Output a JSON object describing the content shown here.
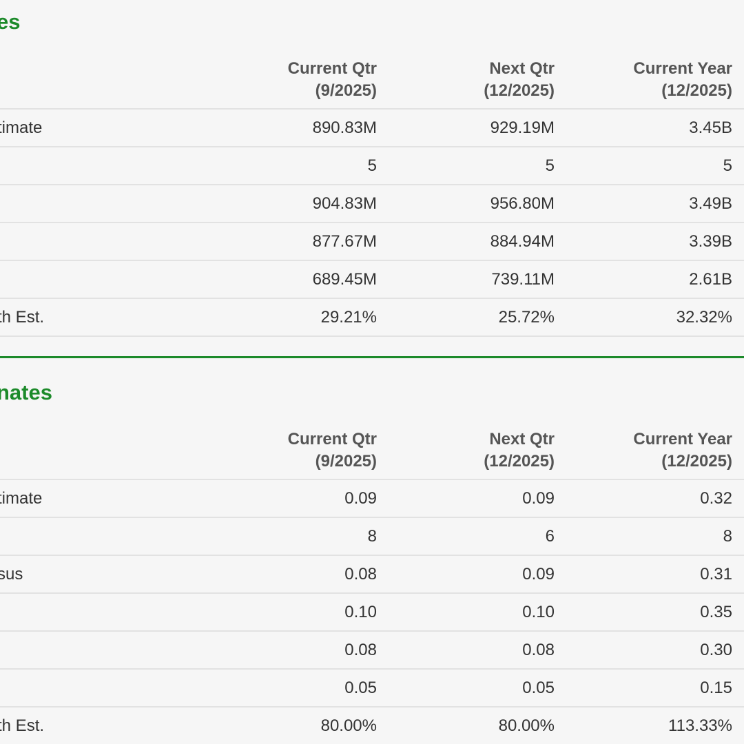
{
  "columns": {
    "current_qtr": {
      "line1": "Current Qtr",
      "line2": "(9/2025)"
    },
    "next_qtr": {
      "line1": "Next Qtr",
      "line2": "(12/2025)"
    },
    "current_year": {
      "line1": "Current Year",
      "line2": "(12/2025)"
    }
  },
  "sales": {
    "title": "es",
    "rows": [
      {
        "label": "timate",
        "current_qtr": "890.83M",
        "next_qtr": "929.19M",
        "current_year": "3.45B"
      },
      {
        "label": "",
        "current_qtr": "5",
        "next_qtr": "5",
        "current_year": "5"
      },
      {
        "label": "",
        "current_qtr": "904.83M",
        "next_qtr": "956.80M",
        "current_year": "3.49B"
      },
      {
        "label": "",
        "current_qtr": "877.67M",
        "next_qtr": "884.94M",
        "current_year": "3.39B"
      },
      {
        "label": "",
        "current_qtr": "689.45M",
        "next_qtr": "739.11M",
        "current_year": "2.61B"
      },
      {
        "label": "th Est.",
        "current_qtr": "29.21%",
        "next_qtr": "25.72%",
        "current_year": "32.32%"
      }
    ]
  },
  "eps": {
    "title": "nates",
    "rows": [
      {
        "label": "timate",
        "current_qtr": "0.09",
        "next_qtr": "0.09",
        "current_year": "0.32"
      },
      {
        "label": "",
        "current_qtr": "8",
        "next_qtr": "6",
        "current_year": "8"
      },
      {
        "label": "sus",
        "current_qtr": "0.08",
        "next_qtr": "0.09",
        "current_year": "0.31"
      },
      {
        "label": "",
        "current_qtr": "0.10",
        "next_qtr": "0.10",
        "current_year": "0.35"
      },
      {
        "label": "",
        "current_qtr": "0.08",
        "next_qtr": "0.08",
        "current_year": "0.30"
      },
      {
        "label": "",
        "current_qtr": "0.05",
        "next_qtr": "0.05",
        "current_year": "0.15"
      },
      {
        "label": "th Est.",
        "current_qtr": "80.00%",
        "next_qtr": "80.00%",
        "current_year": "113.33%"
      }
    ]
  },
  "colors": {
    "accent": "#1c8a2a",
    "rule": "#e2e2e2",
    "background": "#f6f6f6"
  }
}
